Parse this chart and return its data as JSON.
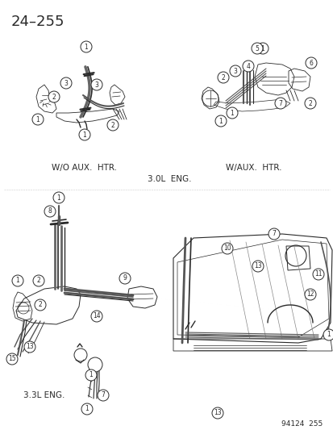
{
  "title": "24–255",
  "background_color": "#ffffff",
  "text_color": "#1a1a1a",
  "labels": {
    "top_left_caption": "W/O AUX.  HTR.",
    "top_right_caption": "W/AUX.  HTR.",
    "middle_caption": "3.0L  ENG.",
    "bottom_left_caption": "3.3L ENG.",
    "bottom_right_stamp": "94124  255"
  },
  "figsize": [
    4.14,
    5.33
  ],
  "dpi": 100,
  "title_fontsize": 13,
  "caption_fontsize": 7.5,
  "stamp_fontsize": 6.5
}
